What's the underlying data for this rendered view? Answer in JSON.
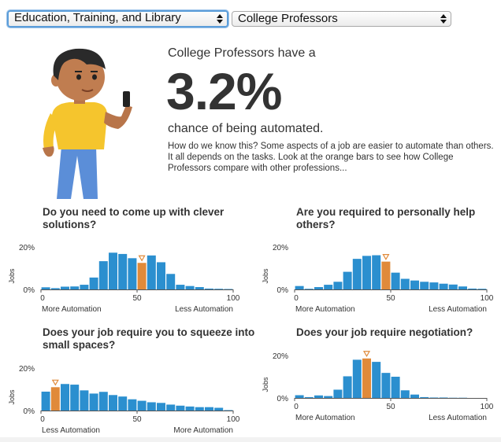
{
  "selectors": {
    "category": "Education, Training, and Library",
    "occupation": "College Professors"
  },
  "summary": {
    "lead": "College Professors have a",
    "percent": "3.2%",
    "chance": "chance of being automated.",
    "explain": "How do we know this? Some aspects of a job are easier to automate than others. It all depends on the tasks. Look at the orange bars to see how College Professors compare with other professions..."
  },
  "colors": {
    "bar": "#2b8fcf",
    "highlight": "#e08a3a",
    "axis": "#333333"
  },
  "charts": [
    {
      "title": "Do you need to come up with clever solutions?",
      "ylabel": "Jobs",
      "ytick_top": "20%",
      "ytick_zero": "0%",
      "xticks": [
        "0",
        "50",
        "100"
      ],
      "left_label": "More Automation",
      "right_label": "Less Automation",
      "highlight_index": 10,
      "values": [
        1,
        0.6,
        1.3,
        1.4,
        2.2,
        5.6,
        13.3,
        17.3,
        16.7,
        14.7,
        12.5,
        16.0,
        12.8,
        7.3,
        2.2,
        1.6,
        1.1,
        0.4,
        0.3,
        0.2
      ]
    },
    {
      "title": "Are you required to personally help others?",
      "ylabel": "Jobs",
      "ytick_top": "20%",
      "ytick_zero": "0%",
      "xticks": [
        "0",
        "50",
        "100"
      ],
      "left_label": "More Automation",
      "right_label": "Less Automation",
      "highlight_index": 9,
      "values": [
        1.6,
        0.3,
        1.1,
        2.2,
        3.6,
        8.3,
        14.4,
        15.8,
        16.1,
        13.1,
        7.9,
        5.0,
        4.2,
        3.6,
        3.3,
        2.7,
        2.3,
        1.4,
        0.4,
        0.3
      ]
    },
    {
      "title": "Does your job require you to squeeze into small spaces?",
      "ylabel": "Jobs",
      "ytick_top": "20%",
      "ytick_zero": "0%",
      "xticks": [
        "0",
        "50",
        "100"
      ],
      "left_label": "Less Automation",
      "right_label": "More Automation",
      "highlight_index": 1,
      "values": [
        8.9,
        11.0,
        12.5,
        12.2,
        9.5,
        8.0,
        8.8,
        7.3,
        6.6,
        5.3,
        4.6,
        3.9,
        3.6,
        2.8,
        2.3,
        1.9,
        1.6,
        1.6,
        1.3,
        0.2
      ]
    },
    {
      "title": "Does your job require negotiation?",
      "ylabel": "Jobs",
      "ytick_top": "20%",
      "ytick_zero": "0%",
      "xticks": [
        "0",
        "50",
        "100"
      ],
      "left_label": "More Automation",
      "right_label": "Less Automation",
      "highlight_index": 7,
      "values": [
        1.3,
        0.4,
        1.2,
        0.9,
        3.9,
        10.2,
        18.0,
        18.6,
        17.0,
        11.8,
        10.0,
        3.6,
        1.6,
        0.4,
        0.2,
        0.2,
        0.1,
        0.1,
        0,
        0
      ]
    }
  ]
}
